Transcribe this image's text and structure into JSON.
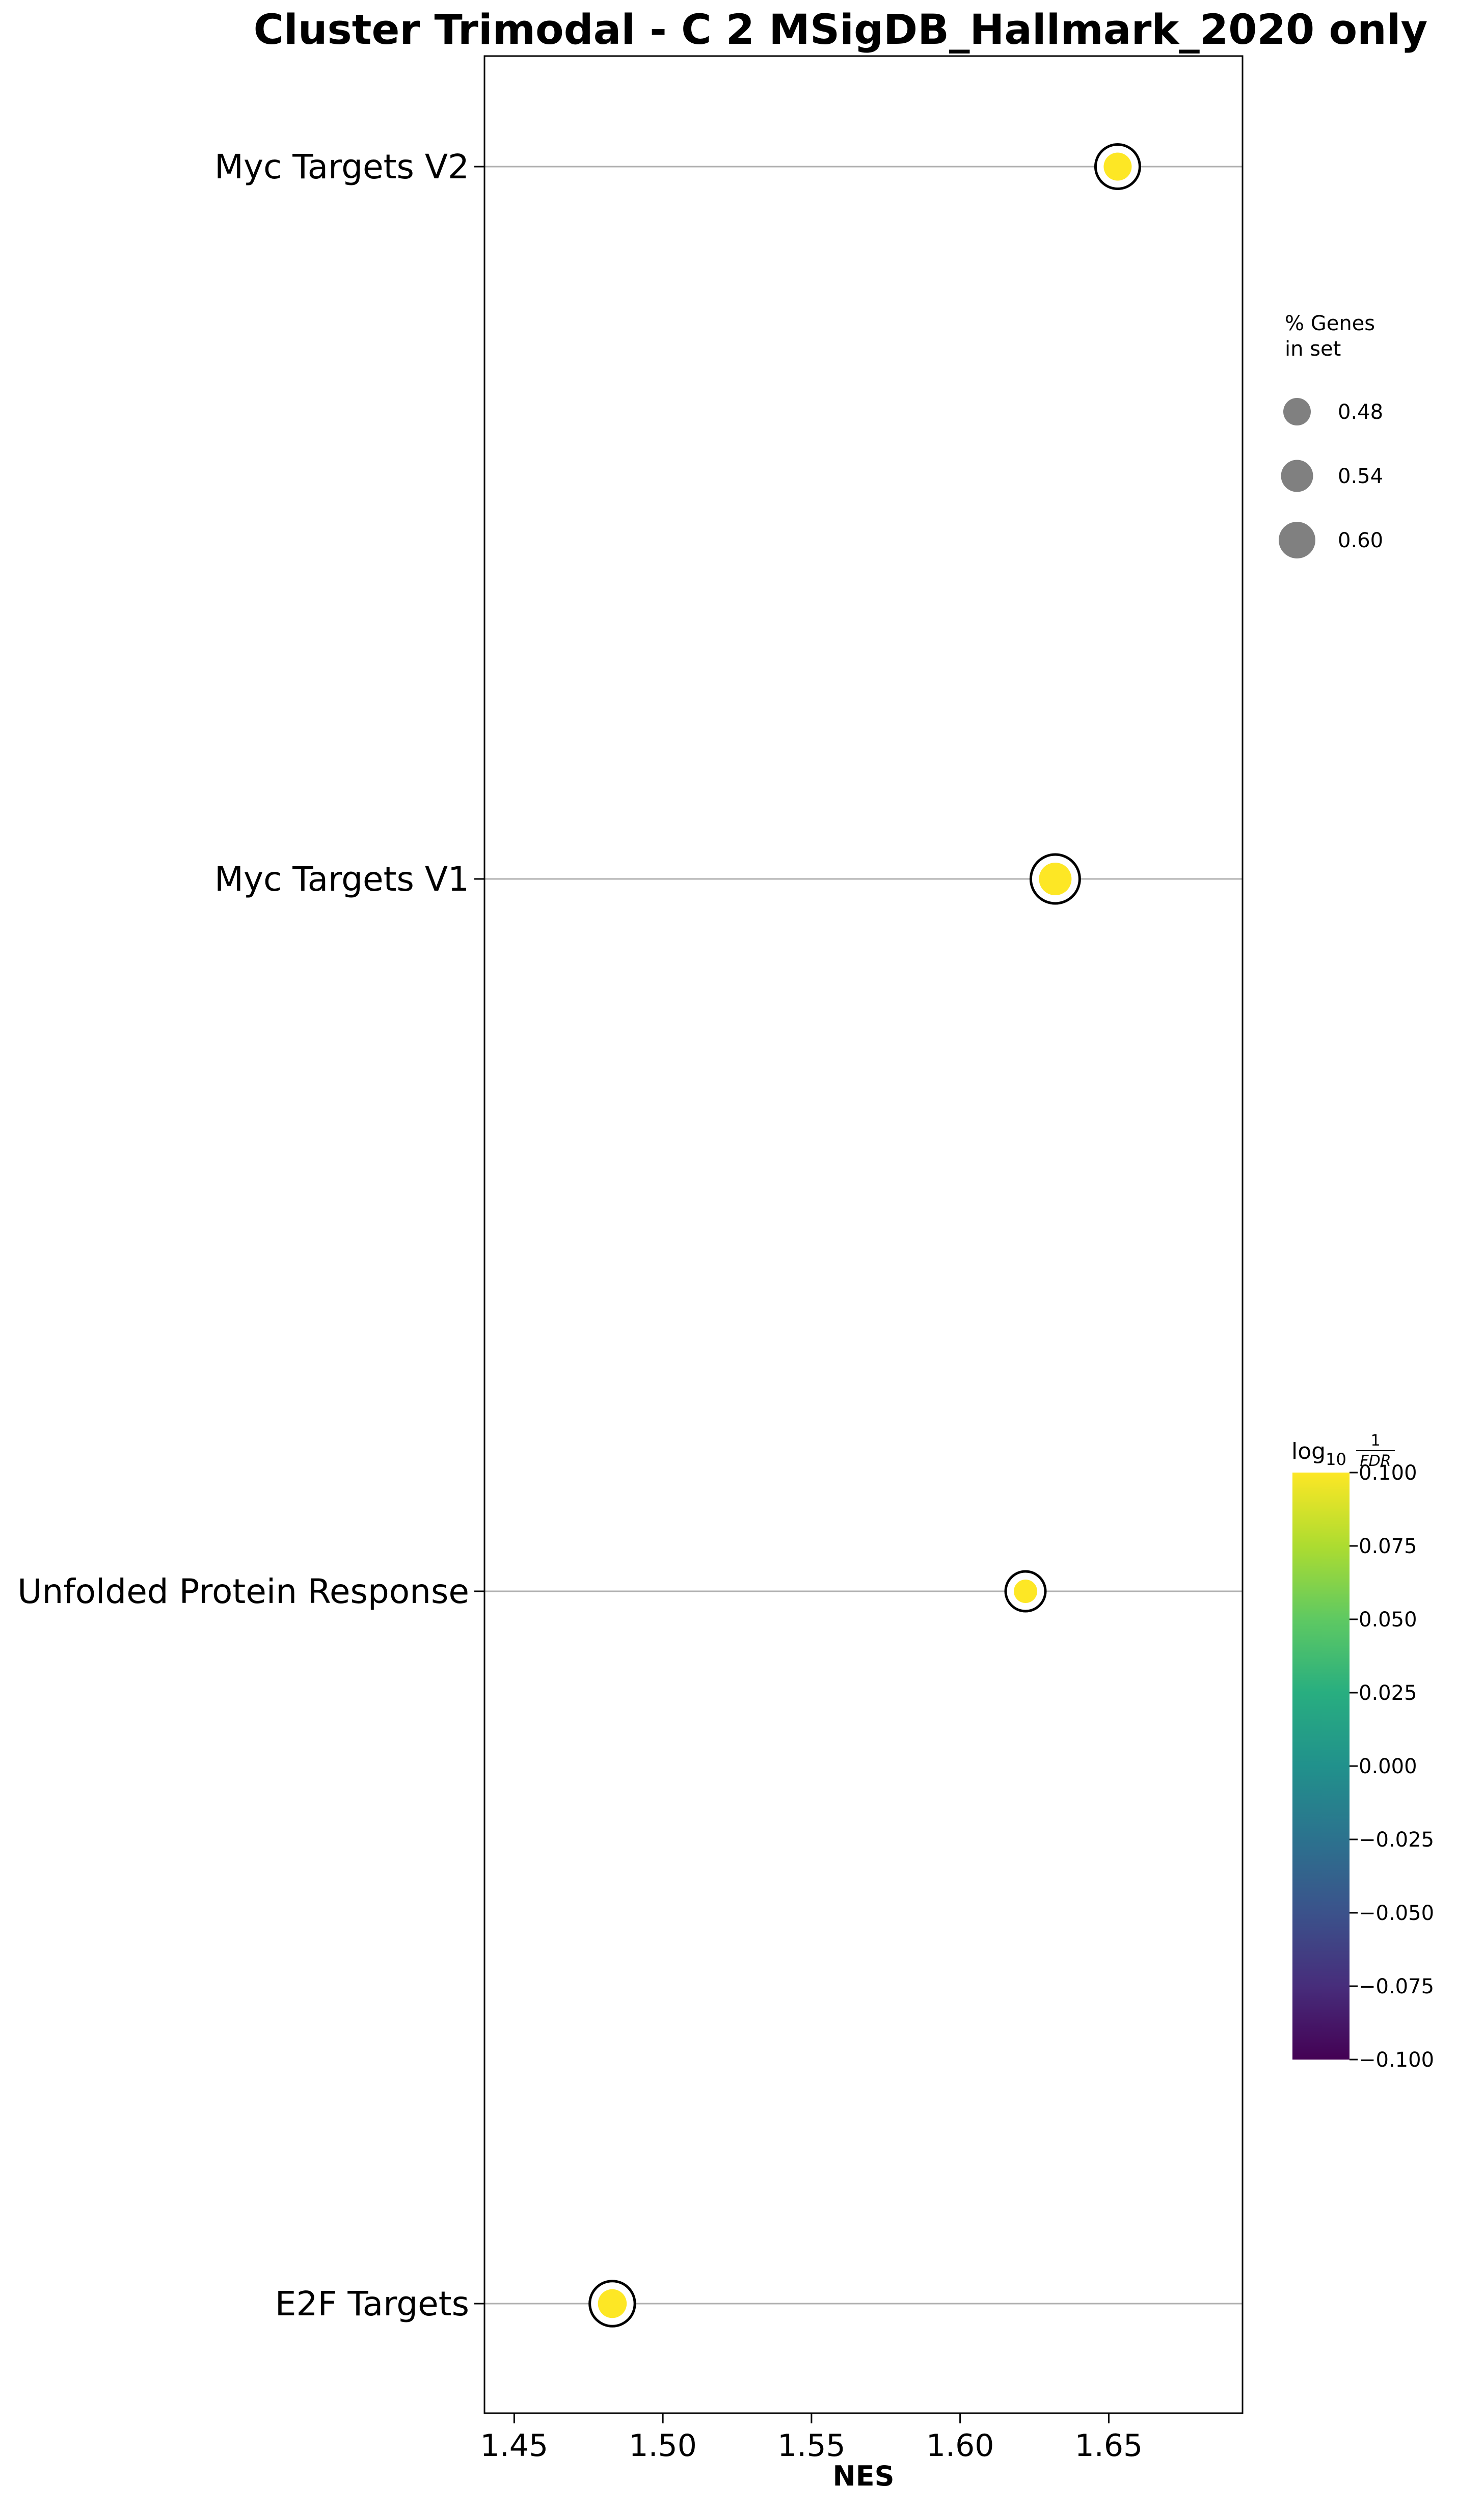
{
  "chart_data": {
    "type": "scatter",
    "title": "Cluster Trimodal - C 2 MSigDB_Hallmark_2020 only",
    "xlabel": "NES",
    "ylabel": "",
    "xlim": [
      1.44,
      1.695
    ],
    "xticks": [
      "1.45",
      "1.50",
      "1.55",
      "1.60",
      "1.65"
    ],
    "xtick_values": [
      1.45,
      1.5,
      1.55,
      1.6,
      1.65
    ],
    "categories": [
      "Myc Targets V2",
      "Myc Targets V1",
      "Unfolded Protein Response",
      "E2F Targets"
    ],
    "points": [
      {
        "term": "Myc Targets V2",
        "nes": 1.653,
        "pct_genes": 0.54,
        "log10_inv_fdr": 0.1
      },
      {
        "term": "Myc Targets V1",
        "nes": 1.632,
        "pct_genes": 0.6,
        "log10_inv_fdr": 0.1
      },
      {
        "term": "Unfolded Protein Response",
        "nes": 1.622,
        "pct_genes": 0.48,
        "log10_inv_fdr": 0.1
      },
      {
        "term": "E2F Targets",
        "nes": 1.483,
        "pct_genes": 0.55,
        "log10_inv_fdr": 0.1
      }
    ],
    "grid": "horizontal",
    "size_legend": {
      "title_lines": [
        "% Genes",
        "in set"
      ],
      "entries": [
        "0.48",
        "0.54",
        "0.60"
      ],
      "values": [
        0.48,
        0.54,
        0.6
      ],
      "marker_color": "#808080",
      "placement": "upper-right"
    },
    "colorbar": {
      "title_base": "log",
      "title_sub": "10",
      "title_num": "1",
      "title_den": "FDR",
      "range": [
        -0.1,
        0.1
      ],
      "ticks": [
        "0.100",
        "0.075",
        "0.050",
        "0.025",
        "0.000",
        "−0.025",
        "−0.050",
        "−0.075",
        "−0.100"
      ],
      "tick_values": [
        0.1,
        0.075,
        0.05,
        0.025,
        0.0,
        -0.025,
        -0.05,
        -0.075,
        -0.1
      ],
      "colormap": "viridis",
      "placement": "lower-right"
    },
    "colors": {
      "point_fill": "#fde725",
      "point_edge": "#000000",
      "gridline": "#b0b0b0"
    }
  }
}
